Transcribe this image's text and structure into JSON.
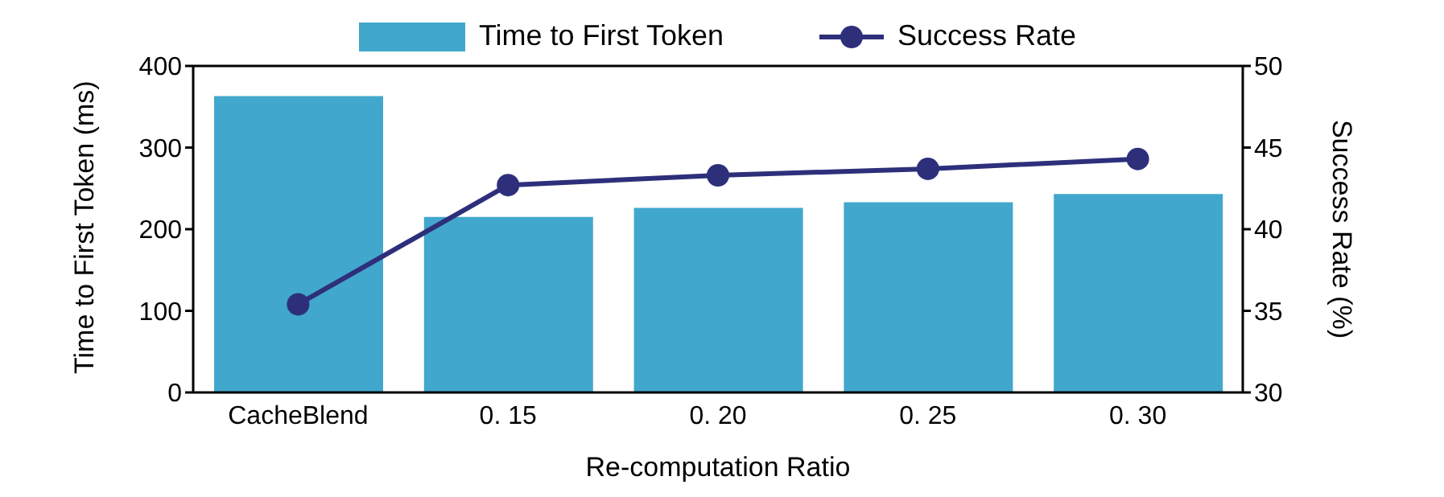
{
  "chart_data": {
    "type": "bar",
    "categories": [
      "CacheBlend",
      "0. 15",
      "0. 20",
      "0. 25",
      "0. 30"
    ],
    "xlabel": "Re-computation Ratio",
    "ylabel": "Time to First Token (ms)",
    "y2label": "Success Rate (%)",
    "series": [
      {
        "name": "Time to First Token",
        "color": "#42a7cc",
        "values": [
          363,
          215,
          226,
          233,
          243
        ]
      },
      {
        "name": "Success Rate",
        "type": "line",
        "axis": "y2",
        "color": "#2e2f7b",
        "values": [
          35.4,
          42.7,
          43.3,
          43.7,
          44.3
        ]
      }
    ],
    "ylim": [
      0,
      400
    ],
    "yticks": [
      0,
      100,
      200,
      300,
      400
    ],
    "y2lim": [
      30,
      50
    ],
    "y2ticks": [
      30,
      35,
      40,
      45,
      50
    ],
    "legend": "top",
    "marker": "circle",
    "line_style": "solid",
    "grid": false
  }
}
